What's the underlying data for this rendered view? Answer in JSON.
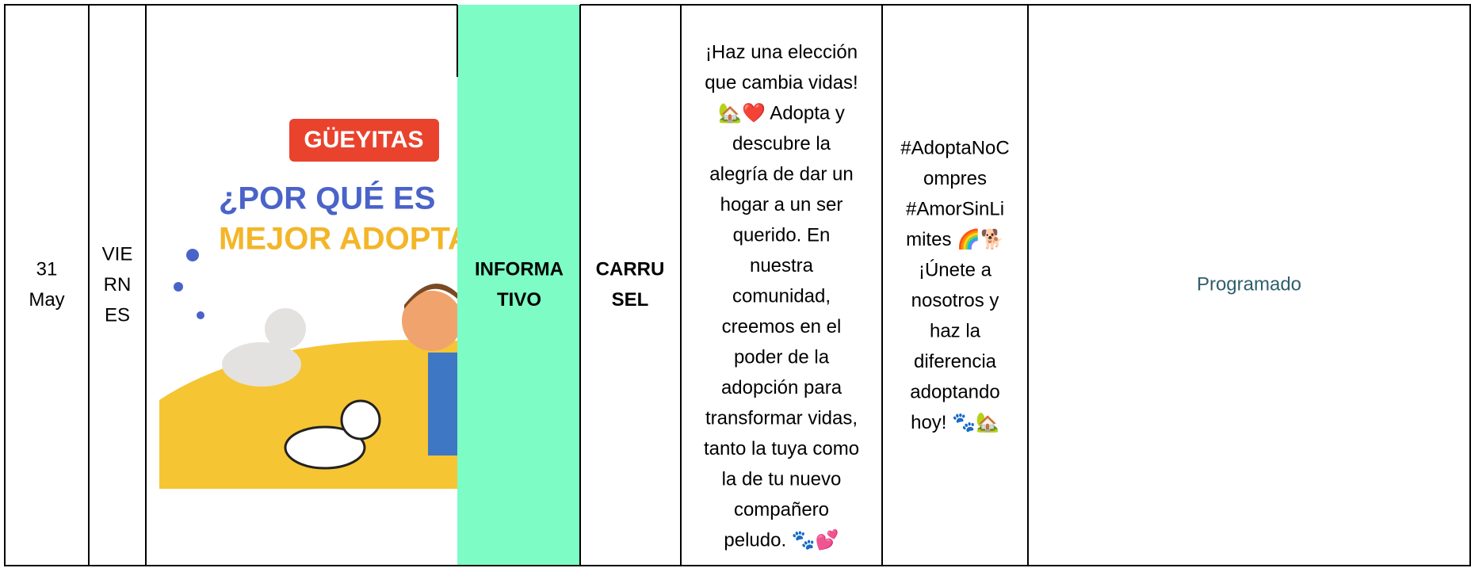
{
  "table": {
    "rows": [
      [
        {
          "lines": [
            "31",
            "May"
          ]
        },
        {
          "lines": [
            "VIE",
            "RN",
            "ES"
          ]
        },
        {
          "image": {
            "logo": "GÜEYITAS",
            "headline": [
              "¿POR QUÉ ES",
              "MEJOR ADOPTA"
            ]
          }
        },
        {
          "lines": [
            "INFORMA",
            "TIVO"
          ]
        },
        {
          "lines": [
            "CARRU",
            "SEL"
          ]
        },
        {
          "lines": [
            "¡Haz una elección",
            "que cambia vidas!",
            "🏡❤️ Adopta y",
            "descubre la",
            "alegría de dar un",
            "hogar a un ser",
            "querido. En",
            "nuestra",
            "comunidad,",
            "creemos en el",
            "poder de la",
            "adopción para",
            "transformar vidas,",
            "tanto la tuya como",
            "la de tu nuevo",
            "compañero",
            "peludo. 🐾💕"
          ]
        },
        {
          "lines": [
            "#AdoptaNoC",
            "ompres",
            "#AmorSinLi",
            "mites 🌈🐕",
            "¡Únete a",
            "nosotros y",
            "haz la",
            "diferencia",
            "adoptando",
            "hoy! 🐾🏡"
          ]
        },
        {
          "lines": [
            "Programado"
          ]
        }
      ]
    ]
  }
}
